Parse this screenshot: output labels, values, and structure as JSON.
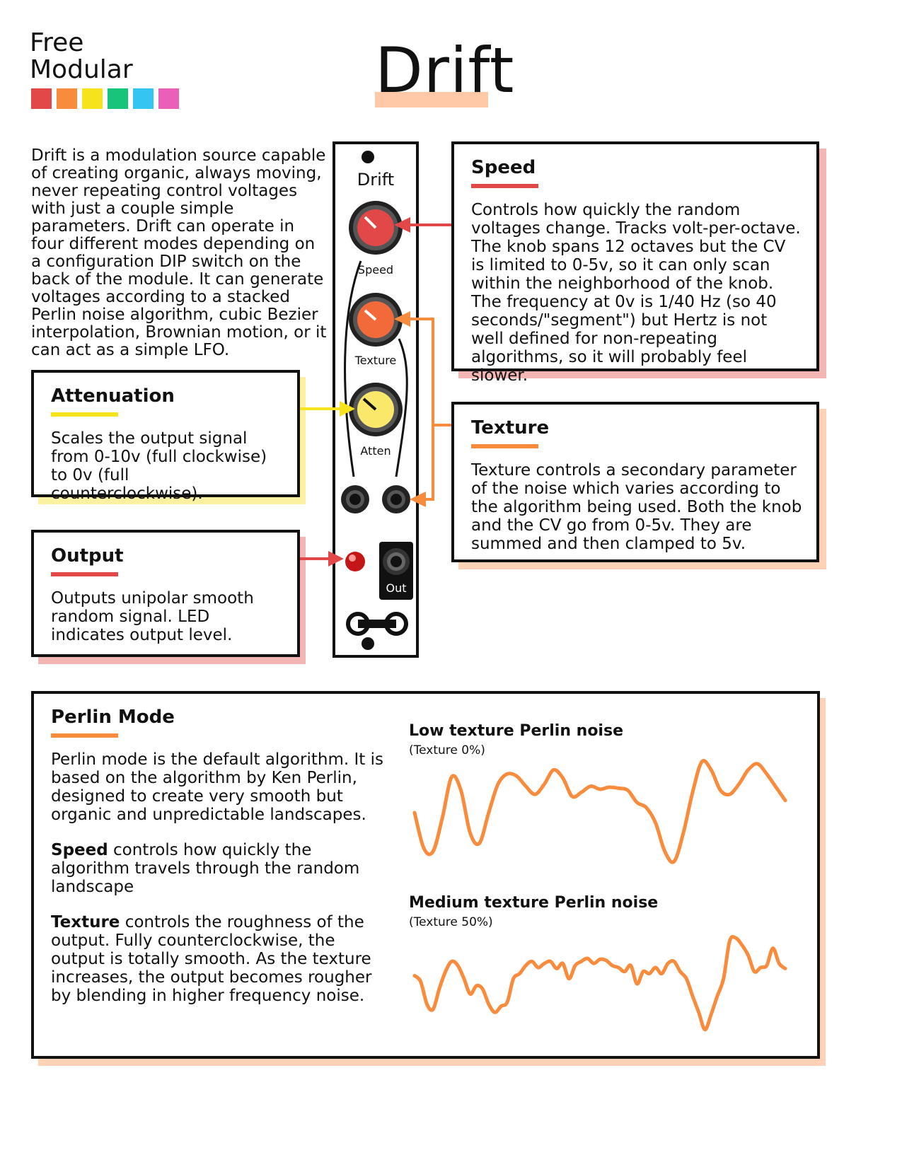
{
  "brand": {
    "line1": "Free",
    "line2": "Modular",
    "swatch_colors": [
      "#e34848",
      "#f98b3c",
      "#f7e31b",
      "#17c47a",
      "#34c5f3",
      "#ea5fb8"
    ]
  },
  "title": "Drift",
  "intro": "Drift is a modulation source capable of creating organic, always moving, never repeating control voltages with just a couple simple parameters. Drift can operate in four different modes depending on a configuration DIP switch on the back of the module. It can generate voltages according to a stacked Perlin noise algorithm, cubic Bezier interpolation, Brownian motion, or it can act as a simple LFO.",
  "module": {
    "name": "Drift",
    "knobs": [
      {
        "label": "Speed",
        "color": "#e34848"
      },
      {
        "label": "Texture",
        "color": "#f36a3a"
      },
      {
        "label": "Atten",
        "color": "#f9e86a"
      }
    ],
    "out_label": "Out"
  },
  "sections": {
    "speed": {
      "title": "Speed",
      "body": "Controls how quickly the random voltages change. Tracks volt-per-octave. The knob spans 12 octaves but the CV is limited to 0-5v, so it can only scan within the neighborhood of the knob. The frequency at 0v is 1/40 Hz (so 40 seconds/\"segment\") but Hertz is not well defined for non-repeating algorithms, so it will probably feel slower.",
      "accent": "#e34848",
      "shadow": "#f4b5b5"
    },
    "texture": {
      "title": "Texture",
      "body": "Texture controls a secondary parameter of the noise which varies according to the algorithm being used. Both the knob and the CV go from 0-5v. They are summed and then clamped to 5v.",
      "accent": "#f98b3c",
      "shadow": "#ffd2b5"
    },
    "attenuation": {
      "title": "Attenuation",
      "body": "Scales the output signal from 0-10v (full clockwise) to 0v (full counterclockwise).",
      "accent": "#f7e31b",
      "shadow": "#fbf1a1"
    },
    "output": {
      "title": "Output",
      "body": "Outputs unipolar smooth random signal. LED indicates output level.",
      "accent": "#e34848",
      "shadow": "#f4b5b5"
    }
  },
  "perlin": {
    "title": "Perlin Mode",
    "p1": "Perlin mode is the default algorithm. It is based on the algorithm by Ken Perlin, designed to create very smooth but organic and unpredictable landscapes.",
    "p2_bold": "Speed",
    "p2_rest": " controls how quickly the algorithm travels through the random landscape",
    "p3_bold": "Texture",
    "p3_rest": " controls the roughness of the output. Fully counterclockwise, the output is totally smooth. As the texture increases, the output becomes rougher by blending in higher frequency noise.",
    "accent": "#f98b3c",
    "shadow": "#ffd2b5"
  },
  "chart_data": [
    {
      "type": "line",
      "title": "Low texture Perlin noise",
      "subtitle": "(Texture 0%)",
      "x": [
        0,
        1,
        2,
        3,
        4,
        5,
        6,
        7,
        8,
        9,
        10,
        11,
        12,
        13,
        14,
        15,
        16,
        17,
        18,
        19,
        20,
        21,
        22,
        23,
        24,
        25,
        26,
        27,
        28,
        29,
        30,
        31,
        32,
        33,
        34,
        35,
        36,
        37,
        38,
        39,
        40
      ],
      "y": [
        0.5,
        0.15,
        0.12,
        0.45,
        0.85,
        0.72,
        0.3,
        0.2,
        0.5,
        0.78,
        0.88,
        0.86,
        0.76,
        0.68,
        0.78,
        0.92,
        0.84,
        0.66,
        0.7,
        0.76,
        0.73,
        0.75,
        0.74,
        0.72,
        0.6,
        0.55,
        0.4,
        0.12,
        0.02,
        0.3,
        0.7,
        1.0,
        0.92,
        0.72,
        0.68,
        0.78,
        0.92,
        0.98,
        0.88,
        0.75,
        0.62
      ],
      "ylim": [
        0,
        1
      ],
      "color": "#f98b3c"
    },
    {
      "type": "line",
      "title": "Medium texture Perlin noise",
      "subtitle": "(Texture 50%)",
      "x": [
        0,
        1,
        2,
        3,
        4,
        5,
        6,
        7,
        8,
        9,
        10,
        11,
        12,
        13,
        14,
        15,
        16,
        17,
        18,
        19,
        20,
        21,
        22,
        23,
        24,
        25,
        26,
        27,
        28,
        29,
        30,
        31,
        32,
        33,
        34,
        35,
        36,
        37,
        38,
        39,
        40,
        41,
        42,
        43,
        44,
        45,
        46,
        47,
        48,
        49,
        50,
        51,
        52,
        53,
        54,
        55,
        56,
        57,
        58,
        59,
        60
      ],
      "y": [
        0.58,
        0.52,
        0.3,
        0.25,
        0.45,
        0.62,
        0.72,
        0.68,
        0.55,
        0.4,
        0.48,
        0.45,
        0.3,
        0.22,
        0.28,
        0.32,
        0.55,
        0.6,
        0.68,
        0.72,
        0.66,
        0.7,
        0.72,
        0.65,
        0.7,
        0.55,
        0.68,
        0.72,
        0.75,
        0.7,
        0.74,
        0.73,
        0.68,
        0.66,
        0.62,
        0.68,
        0.5,
        0.62,
        0.6,
        0.66,
        0.6,
        0.7,
        0.72,
        0.62,
        0.55,
        0.38,
        0.22,
        0.05,
        0.2,
        0.38,
        0.55,
        0.92,
        0.95,
        0.88,
        0.78,
        0.62,
        0.66,
        0.68,
        0.85,
        0.7,
        0.65
      ],
      "ylim": [
        0,
        1
      ],
      "color": "#f98b3c"
    }
  ]
}
